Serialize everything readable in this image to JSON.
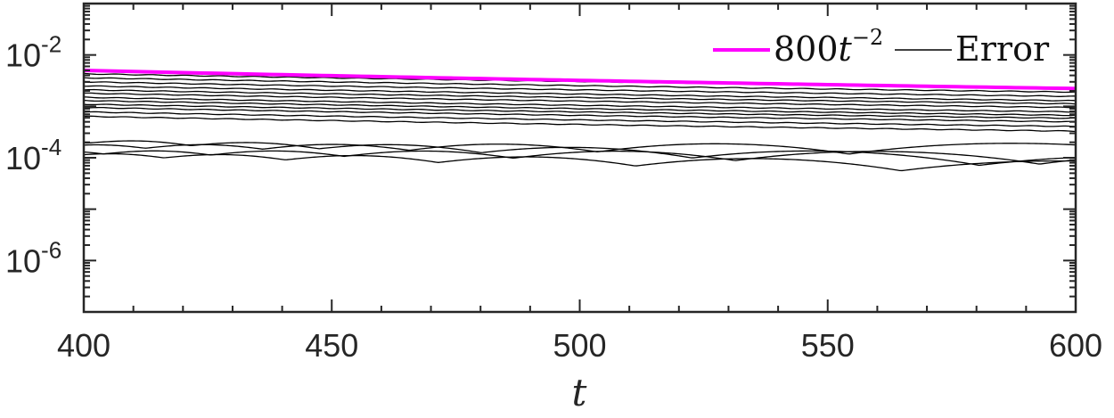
{
  "chart_data": {
    "type": "line",
    "xlabel": "t",
    "ylabel": "",
    "xlim": [
      400,
      600
    ],
    "ylim": [
      1e-07,
      0.1
    ],
    "yscale": "log",
    "xticks": [
      400,
      450,
      500,
      550,
      600
    ],
    "xtick_labels": [
      "400",
      "450",
      "500",
      "550",
      "600"
    ],
    "yticks": [
      0.01,
      0.0001,
      1e-06
    ],
    "ytick_labels": [
      {
        "base": "10",
        "exp": "-2"
      },
      {
        "base": "10",
        "exp": "-4"
      },
      {
        "base": "10",
        "exp": "-6"
      }
    ],
    "grid": false,
    "legend_position": "top-right",
    "reference": {
      "label_main": "800",
      "label_var": "t",
      "label_exp": "−2",
      "coefficient": 800,
      "power": -2,
      "color": "#ff00ff"
    },
    "error_legend_label": "Error",
    "error_color": "#000000",
    "error_curves": [
      {
        "y400": 0.0043
      },
      {
        "y400": 0.0036
      },
      {
        "y400": 0.003
      },
      {
        "y400": 0.0025
      },
      {
        "y400": 0.0021
      },
      {
        "y400": 0.0018
      },
      {
        "y400": 0.0015
      },
      {
        "y400": 0.0013
      },
      {
        "y400": 0.0011
      },
      {
        "y400": 0.00095
      },
      {
        "y400": 0.00078
      },
      {
        "y400": 0.00064
      },
      {
        "y400": 0.00021,
        "oscillating": true,
        "y600": 9.5e-05
      },
      {
        "y400": 0.00017,
        "oscillating": true,
        "y600": 0.00016
      },
      {
        "y400": 0.00013,
        "oscillating": true,
        "y600": 0.00011
      },
      {
        "y400": 0.000115,
        "oscillating": true,
        "y600": 7.2e-05
      }
    ]
  }
}
